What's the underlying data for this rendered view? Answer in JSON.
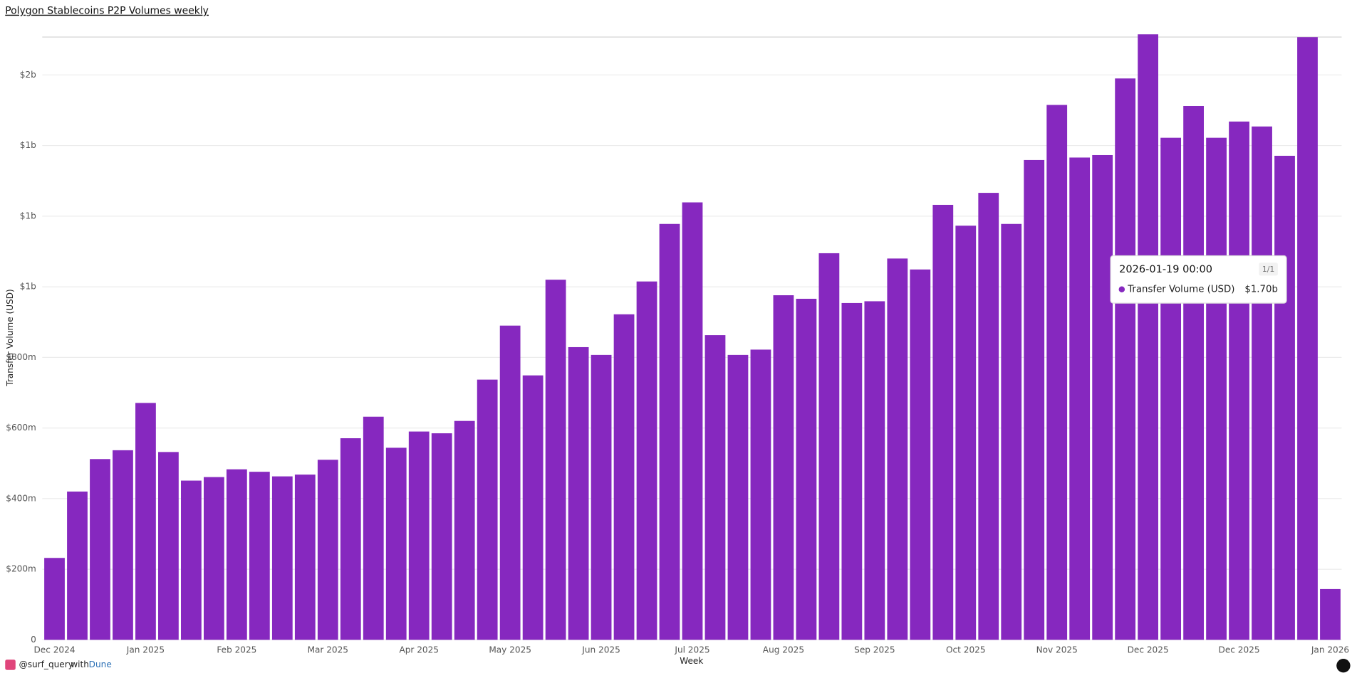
{
  "chart_data": {
    "type": "bar",
    "title": "Polygon Stablecoins P2P Volumes weekly",
    "x_label": "Week",
    "y_label": "Transfer Volume (USD)",
    "categories": [
      "Dec 2024",
      null,
      null,
      null,
      "Jan 2025",
      null,
      null,
      null,
      "Feb 2025",
      null,
      null,
      null,
      "Mar 2025",
      null,
      null,
      null,
      "Apr 2025",
      null,
      null,
      null,
      "May 2025",
      null,
      null,
      null,
      "Jun 2025",
      null,
      null,
      null,
      "Jul 2025",
      null,
      null,
      null,
      "Aug 2025",
      null,
      null,
      null,
      "Sep 2025",
      null,
      null,
      null,
      "Oct 2025",
      null,
      null,
      null,
      "Nov 2025",
      null,
      null,
      null,
      "Dec 2025",
      null,
      null,
      null,
      "Dec 2025",
      null,
      null,
      null,
      "Jan 2026"
    ],
    "values": [
      232,
      420,
      512,
      537,
      671,
      532,
      451,
      461,
      483,
      476,
      463,
      468,
      510,
      571,
      632,
      544,
      590,
      585,
      620,
      737,
      890,
      749,
      1020,
      829,
      807,
      922,
      1015,
      1178,
      1239,
      863,
      807,
      822,
      976,
      966,
      1095,
      954,
      959,
      1080,
      1049,
      1232,
      1173,
      1266,
      1178,
      1359,
      1515,
      1366,
      1373,
      1590,
      1715,
      1422,
      1512,
      1422,
      1468,
      1454,
      1371,
      1707,
      144
    ],
    "color": "#8628bf",
    "ylim": [
      0,
      1720
    ],
    "yticks": [
      0,
      {
        "value": 200,
        "label": "$200m"
      },
      {
        "value": 400,
        "label": "$400m"
      },
      {
        "value": 600,
        "label": "$600m"
      },
      {
        "value": 800,
        "label": "$800m"
      },
      {
        "value": 1000,
        "label": "$1b"
      },
      {
        "value": 1200,
        "label": "$1b"
      },
      {
        "value": 1400,
        "label": "$1b"
      },
      {
        "value": 1600,
        "label": "$2b"
      }
    ],
    "grid": true,
    "tooltip": {
      "date": "2026-01-19 00:00",
      "count": "1/1",
      "series": "Transfer Volume (USD)",
      "value": "$1.70b"
    }
  },
  "footer": {
    "user": "@surf_query",
    "with": "with",
    "brand": "Dune"
  }
}
